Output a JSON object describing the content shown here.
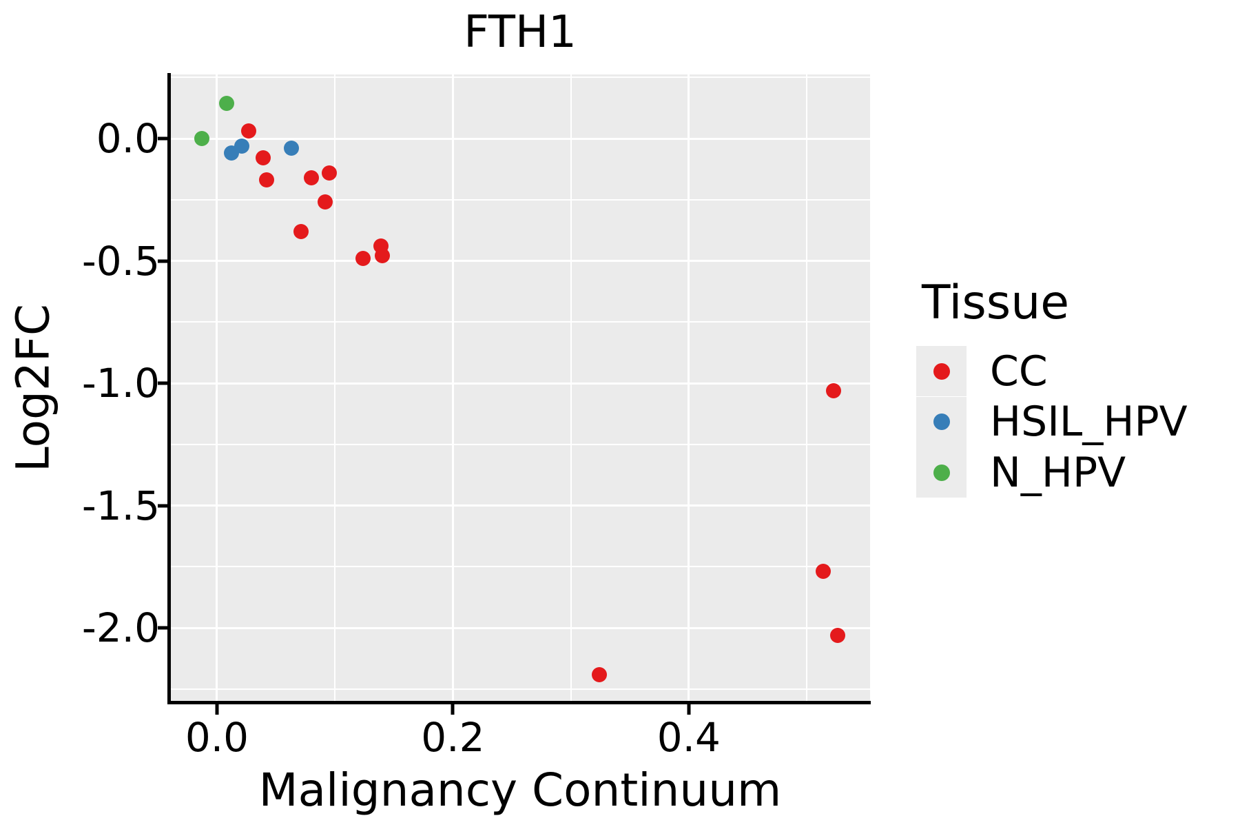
{
  "title": "FTH1",
  "style": {
    "panel_bg": "#EBEBEB",
    "grid_color": "#FFFFFF",
    "axis_color": "#000000",
    "legend_key_bg": "#ECECEC"
  },
  "legend": {
    "title": "Tissue",
    "items": [
      {
        "label": "CC",
        "color": "#E41A1C"
      },
      {
        "label": "HSIL_HPV",
        "color": "#377EB8"
      },
      {
        "label": "N_HPV",
        "color": "#4DAF4A"
      }
    ]
  },
  "chart_data": {
    "type": "scatter",
    "title": "FTH1",
    "xlabel": "Malignancy Continuum",
    "ylabel": "Log2FC",
    "xlim": [
      -0.0397,
      0.5537
    ],
    "ylim": [
      -2.304,
      0.262
    ],
    "grid": "major-and-minor",
    "legend_position": "right",
    "x_ticks": {
      "values": [
        0.0,
        0.2,
        0.4
      ],
      "labels": [
        "0.0",
        "0.2",
        "0.4"
      ],
      "minor": [
        0.1,
        0.3,
        0.5
      ]
    },
    "y_ticks": {
      "values": [
        0.0,
        -0.5,
        -1.0,
        -1.5,
        -2.0
      ],
      "labels": [
        "0.0",
        "-0.5",
        "-1.0",
        "-1.5",
        "-2.0"
      ],
      "minor": [
        0.25,
        -0.25,
        -0.75,
        -1.25,
        -1.75,
        -2.25
      ]
    },
    "series": [
      {
        "name": "CC",
        "color": "#E41A1C",
        "points": [
          [
            0.027,
            0.03
          ],
          [
            0.039,
            -0.08
          ],
          [
            0.042,
            -0.17
          ],
          [
            0.071,
            -0.38
          ],
          [
            0.08,
            -0.16
          ],
          [
            0.092,
            -0.26
          ],
          [
            0.095,
            -0.14
          ],
          [
            0.124,
            -0.49
          ],
          [
            0.139,
            -0.44
          ],
          [
            0.14,
            -0.48
          ],
          [
            0.324,
            -2.19
          ],
          [
            0.514,
            -1.77
          ],
          [
            0.523,
            -1.03
          ],
          [
            0.526,
            -2.03
          ]
        ]
      },
      {
        "name": "HSIL_HPV",
        "color": "#377EB8",
        "points": [
          [
            0.012,
            -0.06
          ],
          [
            0.021,
            -0.03
          ],
          [
            0.063,
            -0.04
          ]
        ]
      },
      {
        "name": "N_HPV",
        "color": "#4DAF4A",
        "points": [
          [
            -0.013,
            0.0
          ],
          [
            0.008,
            0.145
          ]
        ]
      }
    ]
  }
}
